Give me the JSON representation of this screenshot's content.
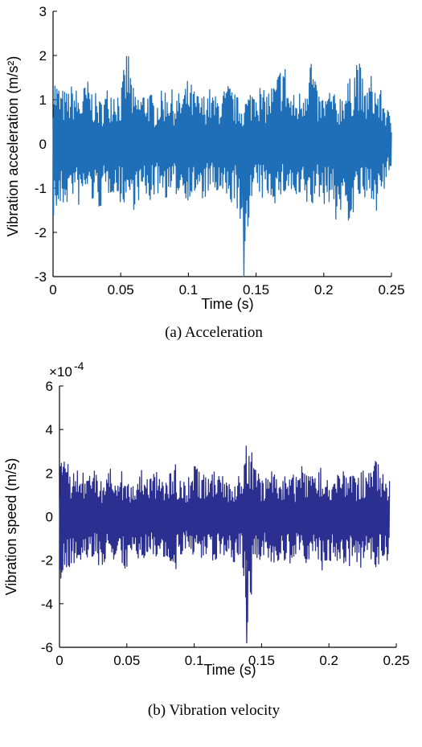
{
  "chart_data": [
    {
      "type": "line",
      "title": "",
      "caption": "(a) Acceleration",
      "xlabel": "Time (s)",
      "ylabel": "Vibration acceleration (m/s²)",
      "xlim": [
        0,
        0.25
      ],
      "ylim": [
        -3,
        3
      ],
      "xticks": [
        "0",
        "0.05",
        "0.1",
        "0.15",
        "0.2",
        "0.25"
      ],
      "yticks": [
        "-3",
        "-2",
        "-1",
        "0",
        "1",
        "2",
        "3"
      ],
      "line_color": "#1f6fb8",
      "grid": false,
      "series": [
        {
          "x": [
            0,
            0.005,
            0.01,
            0.015,
            0.02,
            0.025,
            0.03,
            0.035,
            0.04,
            0.045,
            0.05,
            0.055,
            0.06,
            0.065,
            0.07,
            0.075,
            0.08,
            0.085,
            0.09,
            0.095,
            0.1,
            0.105,
            0.11,
            0.115,
            0.12,
            0.125,
            0.13,
            0.135,
            0.14,
            0.145,
            0.15,
            0.155,
            0.16,
            0.165,
            0.17,
            0.175,
            0.18,
            0.185,
            0.19,
            0.195,
            0.2,
            0.205,
            0.21,
            0.215,
            0.22,
            0.225,
            0.23,
            0.235,
            0.24,
            0.245,
            0.25
          ],
          "upper": [
            1.7,
            1.3,
            1.2,
            1.4,
            1.1,
            1.5,
            1.2,
            1.0,
            1.3,
            1.4,
            1.2,
            2.3,
            1.1,
            1.2,
            1.3,
            1.0,
            1.2,
            1.4,
            1.1,
            1.2,
            1.5,
            1.2,
            1.1,
            1.3,
            1.1,
            1.2,
            1.4,
            1.1,
            1.0,
            1.2,
            1.6,
            1.2,
            1.3,
            1.5,
            2.1,
            1.2,
            1.1,
            1.4,
            2.3,
            1.2,
            1.1,
            1.3,
            1.0,
            1.4,
            1.5,
            2.2,
            1.2,
            1.6,
            1.3,
            1.1,
            0.5
          ],
          "lower": [
            -1.7,
            -1.6,
            -1.4,
            -1.2,
            -1.5,
            -1.1,
            -1.4,
            -1.5,
            -1.2,
            -1.1,
            -1.4,
            -1.3,
            -1.5,
            -1.2,
            -1.4,
            -1.2,
            -1.1,
            -1.3,
            -1.2,
            -1.1,
            -1.3,
            -1.2,
            -1.4,
            -1.1,
            -1.2,
            -1.3,
            -1.5,
            -1.2,
            -3.0,
            -1.6,
            -1.1,
            -1.3,
            -1.2,
            -1.4,
            -1.2,
            -1.1,
            -1.5,
            -1.3,
            -1.6,
            -1.2,
            -1.4,
            -1.3,
            -1.9,
            -1.4,
            -2.0,
            -1.2,
            -1.5,
            -1.2,
            -1.6,
            -1.1,
            -0.5
          ],
          "spike": {
            "x": 0.141,
            "y": -3.0
          }
        }
      ]
    },
    {
      "type": "line",
      "title": "",
      "caption": "(b) Vibration velocity",
      "xlabel": "Time (s)",
      "ylabel": "Vibration speed (m/s)",
      "xlim": [
        0,
        0.25
      ],
      "ylim": [
        -6,
        6
      ],
      "exponent_label": "×10",
      "exponent_power": "-4",
      "xticks": [
        "0",
        "0.05",
        "0.1",
        "0.15",
        "0.2",
        "0.25"
      ],
      "yticks": [
        "-6",
        "-4",
        "-2",
        "0",
        "2",
        "4",
        "6"
      ],
      "line_color": "#2b2f8f",
      "grid": false,
      "series": [
        {
          "x": [
            0,
            0.005,
            0.01,
            0.015,
            0.02,
            0.025,
            0.03,
            0.035,
            0.04,
            0.045,
            0.05,
            0.055,
            0.06,
            0.065,
            0.07,
            0.075,
            0.08,
            0.085,
            0.09,
            0.095,
            0.1,
            0.105,
            0.11,
            0.115,
            0.12,
            0.125,
            0.13,
            0.135,
            0.14,
            0.145,
            0.15,
            0.155,
            0.16,
            0.165,
            0.17,
            0.175,
            0.18,
            0.185,
            0.19,
            0.195,
            0.2,
            0.205,
            0.21,
            0.215,
            0.22,
            0.225,
            0.23,
            0.235,
            0.24,
            0.245
          ],
          "upper": [
            2.6,
            2.5,
            2.2,
            2.3,
            1.8,
            2.4,
            1.6,
            1.7,
            2.7,
            2.3,
            1.6,
            1.8,
            2.3,
            1.9,
            2.0,
            2.1,
            1.9,
            2.6,
            1.7,
            1.6,
            2.7,
            2.1,
            1.8,
            2.5,
            1.9,
            1.7,
            1.8,
            2.1,
            4.1,
            2.3,
            1.8,
            1.9,
            2.5,
            1.8,
            2.2,
            1.8,
            2.5,
            2.1,
            1.8,
            2.6,
            1.9,
            2.2,
            2.0,
            2.5,
            1.9,
            2.1,
            2.4,
            2.6,
            2.0,
            1.7
          ],
          "lower": [
            -3.0,
            -2.5,
            -2.3,
            -2.0,
            -2.2,
            -1.8,
            -2.4,
            -1.9,
            -2.0,
            -2.3,
            -2.4,
            -1.9,
            -2.2,
            -1.8,
            -2.1,
            -2.2,
            -1.9,
            -2.6,
            -1.9,
            -1.6,
            -2.1,
            -2.2,
            -1.8,
            -2.3,
            -1.9,
            -1.6,
            -2.2,
            -1.9,
            -5.8,
            -2.1,
            -2.0,
            -1.9,
            -2.3,
            -2.0,
            -2.2,
            -1.9,
            -2.1,
            -2.5,
            -1.8,
            -2.6,
            -2.0,
            -2.2,
            -2.1,
            -2.4,
            -2.0,
            -2.6,
            -2.2,
            -2.5,
            -2.0,
            -2.2
          ],
          "spike": {
            "x": 0.139,
            "y": -5.8
          }
        }
      ]
    }
  ]
}
